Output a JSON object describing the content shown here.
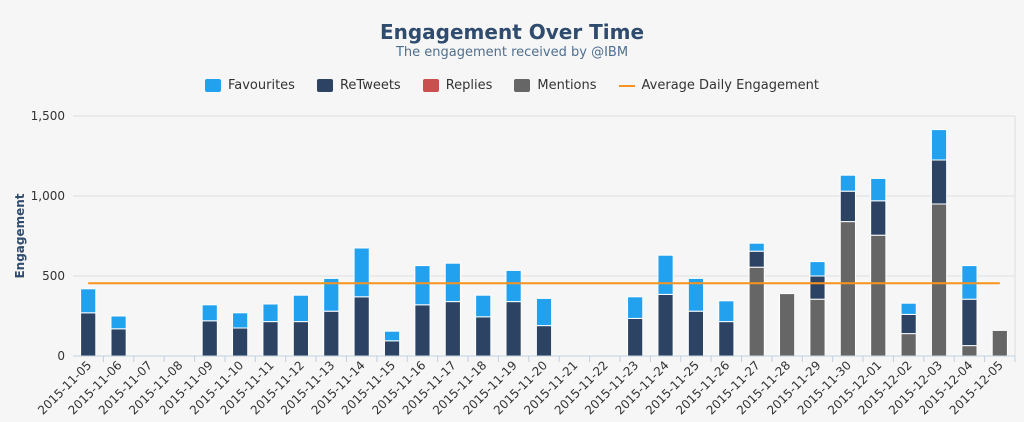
{
  "chart_data": {
    "type": "bar",
    "stacked": true,
    "title": "Engagement Over Time",
    "subtitle": "The engagement received by @IBM",
    "ylabel": "Engagement",
    "xlabel": "",
    "ylim": [
      0,
      1500
    ],
    "yticks": [
      0,
      500,
      1000,
      1500
    ],
    "ytick_labels": [
      "0",
      "500",
      "1,000",
      "1,500"
    ],
    "grid": true,
    "legend_position": "top-center",
    "categories": [
      "2015-11-05",
      "2015-11-06",
      "2015-11-07",
      "2015-11-08",
      "2015-11-09",
      "2015-11-10",
      "2015-11-11",
      "2015-11-12",
      "2015-11-13",
      "2015-11-14",
      "2015-11-15",
      "2015-11-16",
      "2015-11-17",
      "2015-11-18",
      "2015-11-19",
      "2015-11-20",
      "2015-11-21",
      "2015-11-22",
      "2015-11-23",
      "2015-11-24",
      "2015-11-25",
      "2015-11-26",
      "2015-11-27",
      "2015-11-28",
      "2015-11-29",
      "2015-11-30",
      "2015-12-01",
      "2015-12-02",
      "2015-12-03",
      "2015-12-04",
      "2015-12-05"
    ],
    "series": [
      {
        "name": "Mentions",
        "color": "#666666",
        "values": [
          0,
          0,
          0,
          0,
          0,
          0,
          0,
          0,
          0,
          0,
          0,
          0,
          0,
          0,
          0,
          0,
          0,
          0,
          0,
          0,
          0,
          0,
          555,
          390,
          355,
          840,
          755,
          140,
          950,
          65,
          160
        ]
      },
      {
        "name": "Replies",
        "color": "#c9504f",
        "values": [
          0,
          0,
          0,
          0,
          0,
          0,
          0,
          0,
          0,
          0,
          0,
          0,
          0,
          0,
          0,
          0,
          0,
          0,
          0,
          0,
          0,
          0,
          0,
          0,
          0,
          0,
          0,
          0,
          0,
          0,
          0
        ]
      },
      {
        "name": "ReTweets",
        "color": "#2c4364",
        "values": [
          270,
          170,
          0,
          0,
          220,
          175,
          215,
          215,
          280,
          370,
          95,
          320,
          340,
          245,
          340,
          190,
          0,
          0,
          235,
          385,
          280,
          215,
          100,
          0,
          145,
          190,
          215,
          120,
          275,
          290,
          0
        ]
      },
      {
        "name": "Favourites",
        "color": "#22a1ee",
        "values": [
          150,
          80,
          0,
          0,
          100,
          95,
          110,
          165,
          205,
          305,
          60,
          245,
          240,
          135,
          195,
          170,
          0,
          0,
          135,
          245,
          205,
          130,
          50,
          0,
          90,
          100,
          140,
          70,
          190,
          210,
          0
        ]
      }
    ],
    "legend": [
      {
        "name": "Favourites",
        "color": "#22a1ee",
        "kind": "bar"
      },
      {
        "name": "ReTweets",
        "color": "#2c4364",
        "kind": "bar"
      },
      {
        "name": "Replies",
        "color": "#c9504f",
        "kind": "bar"
      },
      {
        "name": "Mentions",
        "color": "#666666",
        "kind": "bar"
      },
      {
        "name": "Average Daily Engagement",
        "color": "#f7931e",
        "kind": "line"
      }
    ],
    "average_line": {
      "name": "Average Daily Engagement",
      "value": 455,
      "color": "#f7931e"
    }
  }
}
